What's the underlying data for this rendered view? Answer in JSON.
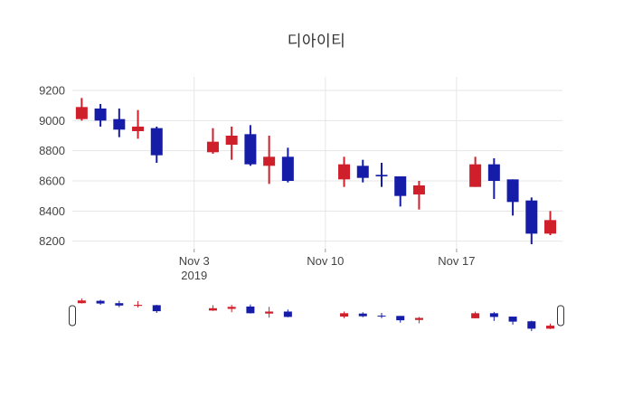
{
  "chart_data": {
    "type": "candlestick",
    "title": "디아이티",
    "legend": "none",
    "grid": true,
    "y_ticks": [
      9200,
      9000,
      8800,
      8600,
      8400,
      8200
    ],
    "ylim": [
      8150,
      9290
    ],
    "xlim_days": [
      -0.5,
      25.65
    ],
    "x_ticks": [
      {
        "label": "Nov 3",
        "sublabel": "2019",
        "day": 6
      },
      {
        "label": "Nov 10",
        "sublabel": "",
        "day": 13
      },
      {
        "label": "Nov 17",
        "sublabel": "",
        "day": 20
      }
    ],
    "candles": [
      {
        "date": "2019-10-28",
        "day": 0,
        "open": 9010,
        "high": 9150,
        "low": 9000,
        "close": 9090
      },
      {
        "date": "2019-10-29",
        "day": 1,
        "open": 9080,
        "high": 9110,
        "low": 8960,
        "close": 9000
      },
      {
        "date": "2019-10-30",
        "day": 2,
        "open": 9010,
        "high": 9080,
        "low": 8890,
        "close": 8940
      },
      {
        "date": "2019-10-31",
        "day": 3,
        "open": 8930,
        "high": 9070,
        "low": 8880,
        "close": 8960
      },
      {
        "date": "2019-11-01",
        "day": 4,
        "open": 8950,
        "high": 8960,
        "low": 8720,
        "close": 8770
      },
      {
        "date": "2019-11-04",
        "day": 7,
        "open": 8790,
        "high": 8950,
        "low": 8780,
        "close": 8860
      },
      {
        "date": "2019-11-05",
        "day": 8,
        "open": 8840,
        "high": 8960,
        "low": 8740,
        "close": 8900
      },
      {
        "date": "2019-11-06",
        "day": 9,
        "open": 8910,
        "high": 8970,
        "low": 8700,
        "close": 8710
      },
      {
        "date": "2019-11-07",
        "day": 10,
        "open": 8700,
        "high": 8900,
        "low": 8580,
        "close": 8760
      },
      {
        "date": "2019-11-08",
        "day": 11,
        "open": 8760,
        "high": 8820,
        "low": 8590,
        "close": 8600
      },
      {
        "date": "2019-11-11",
        "day": 14,
        "open": 8610,
        "high": 8760,
        "low": 8560,
        "close": 8710
      },
      {
        "date": "2019-11-12",
        "day": 15,
        "open": 8700,
        "high": 8740,
        "low": 8590,
        "close": 8620
      },
      {
        "date": "2019-11-13",
        "day": 16,
        "open": 8640,
        "high": 8720,
        "low": 8560,
        "close": 8630
      },
      {
        "date": "2019-11-14",
        "day": 17,
        "open": 8630,
        "high": 8630,
        "low": 8430,
        "close": 8500
      },
      {
        "date": "2019-11-15",
        "day": 18,
        "open": 8510,
        "high": 8600,
        "low": 8410,
        "close": 8570
      },
      {
        "date": "2019-11-18",
        "day": 21,
        "open": 8560,
        "high": 8760,
        "low": 8560,
        "close": 8710
      },
      {
        "date": "2019-11-19",
        "day": 22,
        "open": 8710,
        "high": 8750,
        "low": 8480,
        "close": 8600
      },
      {
        "date": "2019-11-20",
        "day": 23,
        "open": 8610,
        "high": 8610,
        "low": 8370,
        "close": 8460
      },
      {
        "date": "2019-11-21",
        "day": 24,
        "open": 8470,
        "high": 8490,
        "low": 8180,
        "close": 8250
      },
      {
        "date": "2019-11-22",
        "day": 25,
        "open": 8250,
        "high": 8400,
        "low": 8240,
        "close": 8340
      }
    ],
    "colors": {
      "increasing": "#cf1f2b",
      "decreasing": "#151ca8",
      "grid": "#e6e6e6",
      "tick_mark": "#999999",
      "tick_text": "#444444",
      "title_text": "#333333",
      "handle_border": "#333333",
      "background": "#ffffff"
    },
    "rangeslider": {
      "visible": true
    }
  }
}
